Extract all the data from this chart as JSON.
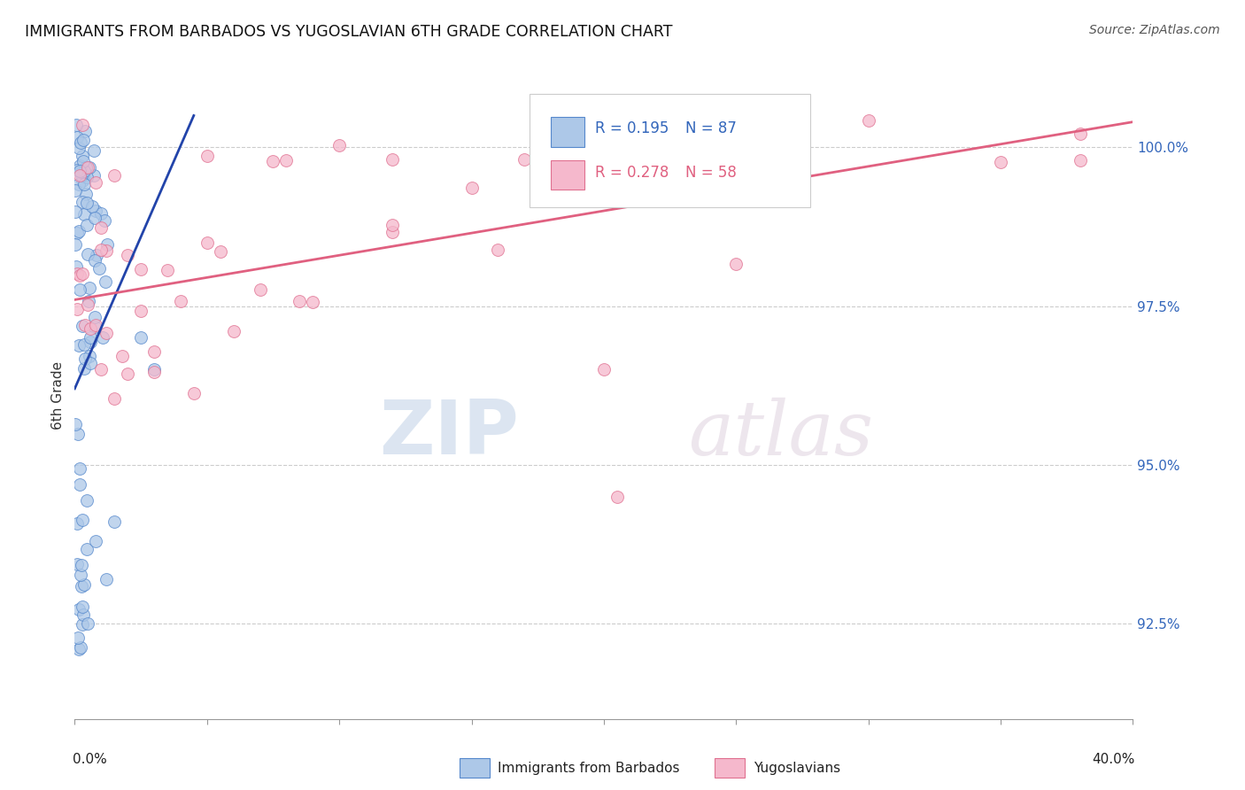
{
  "title": "IMMIGRANTS FROM BARBADOS VS YUGOSLAVIAN 6TH GRADE CORRELATION CHART",
  "source": "Source: ZipAtlas.com",
  "ylabel": "6th Grade",
  "y_ticks": [
    92.5,
    95.0,
    97.5,
    100.0
  ],
  "y_tick_labels": [
    "92.5%",
    "95.0%",
    "97.5%",
    "100.0%"
  ],
  "x_min": 0.0,
  "x_max": 40.0,
  "y_min": 91.0,
  "y_max": 101.2,
  "blue_color": "#adc8e8",
  "blue_edge_color": "#5588cc",
  "pink_color": "#f5b8cc",
  "pink_edge_color": "#e07090",
  "blue_line_color": "#2244aa",
  "pink_line_color": "#e06080",
  "R_blue": 0.195,
  "N_blue": 87,
  "R_pink": 0.278,
  "N_pink": 58,
  "legend_label_blue": "Immigrants from Barbados",
  "legend_label_pink": "Yugoslavians",
  "watermark_zip": "ZIP",
  "watermark_atlas": "atlas",
  "grid_color": "#cccccc",
  "blue_line_x": [
    0.0,
    4.5
  ],
  "blue_line_y": [
    96.2,
    100.5
  ],
  "pink_line_x": [
    0.0,
    40.0
  ],
  "pink_line_y": [
    97.6,
    100.4
  ]
}
